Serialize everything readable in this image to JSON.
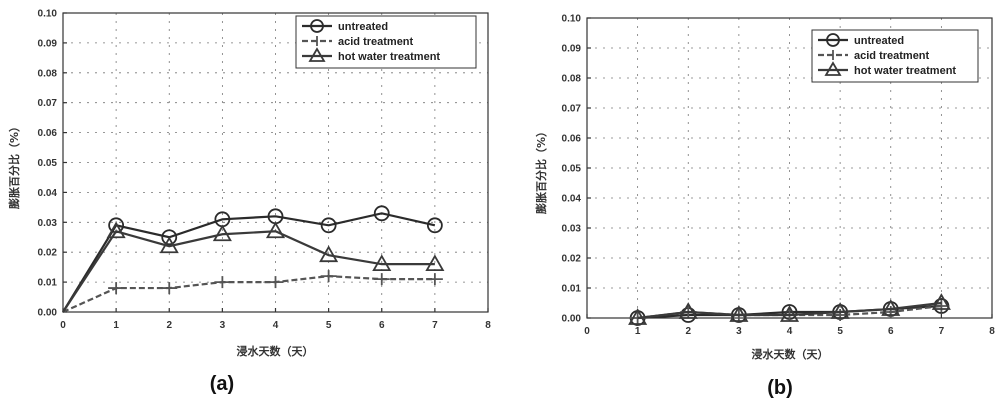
{
  "chart_data": [
    {
      "type": "line",
      "panel_label": "(a)",
      "xlabel": "浸水天数（天）",
      "ylabel": "膨胀百分比（%）",
      "xlim": [
        0,
        8
      ],
      "ylim": [
        0,
        0.1
      ],
      "xticks": [
        0,
        1,
        2,
        3,
        4,
        5,
        6,
        7,
        8
      ],
      "yticks": [
        0.0,
        0.01,
        0.02,
        0.03,
        0.04,
        0.05,
        0.06,
        0.07,
        0.08,
        0.09,
        0.1
      ],
      "ytick_labels": [
        "0.00",
        "0.01",
        "0.02",
        "0.03",
        "0.04",
        "0.05",
        "0.06",
        "0.07",
        "0.08",
        "0.09",
        "0.10"
      ],
      "grid": true,
      "legend_position": "top-right",
      "series": [
        {
          "name": "untreated",
          "marker": "circle",
          "x": [
            0,
            1,
            2,
            3,
            4,
            5,
            6,
            7
          ],
          "y": [
            0.0,
            0.029,
            0.025,
            0.031,
            0.032,
            0.029,
            0.033,
            0.029
          ]
        },
        {
          "name": "acid treatment",
          "marker": "plus",
          "x": [
            0,
            1,
            2,
            3,
            4,
            5,
            6,
            7
          ],
          "y": [
            0.0,
            0.008,
            0.008,
            0.01,
            0.01,
            0.012,
            0.011,
            0.011
          ]
        },
        {
          "name": "hot water treatment",
          "marker": "triangle",
          "x": [
            0,
            1,
            2,
            3,
            4,
            5,
            6,
            7
          ],
          "y": [
            0.0,
            0.027,
            0.022,
            0.026,
            0.027,
            0.019,
            0.016,
            0.016
          ]
        }
      ]
    },
    {
      "type": "line",
      "panel_label": "(b)",
      "xlabel": "浸水天数（天）",
      "ylabel": "膨胀百分比（%）",
      "xlim": [
        0,
        8
      ],
      "ylim": [
        0,
        0.1
      ],
      "xticks": [
        0,
        1,
        2,
        3,
        4,
        5,
        6,
        7,
        8
      ],
      "yticks": [
        0.0,
        0.01,
        0.02,
        0.03,
        0.04,
        0.05,
        0.06,
        0.07,
        0.08,
        0.09,
        0.1
      ],
      "ytick_labels": [
        "0.00",
        "0.01",
        "0.02",
        "0.03",
        "0.04",
        "0.05",
        "0.06",
        "0.07",
        "0.08",
        "0.09",
        "0.10"
      ],
      "grid": true,
      "legend_position": "top-right",
      "series": [
        {
          "name": "untreated",
          "marker": "circle",
          "x": [
            1,
            2,
            3,
            4,
            5,
            6,
            7
          ],
          "y": [
            0.0,
            0.001,
            0.001,
            0.002,
            0.002,
            0.003,
            0.004
          ]
        },
        {
          "name": "acid treatment",
          "marker": "plus",
          "x": [
            1,
            2,
            3,
            4,
            5,
            6,
            7
          ],
          "y": [
            0.0,
            0.002,
            0.001,
            0.001,
            0.001,
            0.002,
            0.004
          ]
        },
        {
          "name": "hot water treatment",
          "marker": "triangle",
          "x": [
            1,
            2,
            3,
            4,
            5,
            6,
            7
          ],
          "y": [
            0.0,
            0.002,
            0.001,
            0.001,
            0.002,
            0.003,
            0.005
          ]
        }
      ]
    }
  ],
  "colors": {
    "untreated": "#2b2b2b",
    "acid treatment": "#555555",
    "hot water treatment": "#3a3a3a"
  }
}
